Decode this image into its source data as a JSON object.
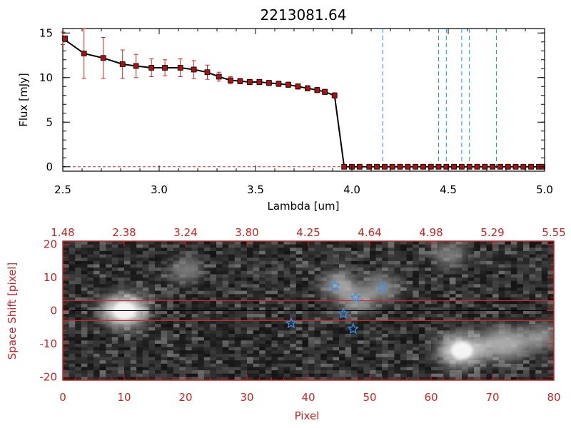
{
  "chart_data": [
    {
      "type": "line",
      "title": "2213081.64",
      "xlabel": "Lambda [um]",
      "ylabel": "Flux [mJy]",
      "xlim": [
        2.5,
        5.0
      ],
      "ylim": [
        -0.5,
        15.5
      ],
      "x_ticks": [
        "2.5",
        "3.0",
        "3.5",
        "4.0",
        "4.5",
        "5.0"
      ],
      "x_tick_values": [
        2.5,
        3.0,
        3.5,
        4.0,
        4.5,
        5.0
      ],
      "y_ticks": [
        "0",
        "5",
        "10",
        "15"
      ],
      "y_tick_values": [
        0,
        5,
        10,
        15
      ],
      "series": [
        {
          "color": "#000000",
          "marker_color": "#aa1111",
          "errorbar_color": "#dd2222",
          "x": [
            2.5,
            2.61,
            2.71,
            2.81,
            2.88,
            2.96,
            3.03,
            3.11,
            3.18,
            3.25,
            3.31,
            3.37,
            3.42,
            3.47,
            3.52,
            3.57,
            3.62,
            3.67,
            3.72,
            3.77,
            3.82,
            3.86,
            3.91,
            3.96,
            4.0,
            4.04,
            4.09,
            4.13,
            4.17,
            4.21,
            4.25,
            4.29,
            4.33,
            4.37,
            4.41,
            4.45,
            4.49,
            4.53,
            4.57,
            4.61,
            4.65,
            4.69,
            4.73,
            4.77,
            4.81,
            4.85,
            4.89,
            4.93,
            4.97,
            5.0
          ],
          "y": [
            14.4,
            12.7,
            12.2,
            11.5,
            11.3,
            11.1,
            11.1,
            11.1,
            10.9,
            10.6,
            10.1,
            9.7,
            9.6,
            9.5,
            9.5,
            9.4,
            9.3,
            9.2,
            9.0,
            8.8,
            8.6,
            8.4,
            8.0,
            0.0,
            0.0,
            0.0,
            0.0,
            0.0,
            0.0,
            0.0,
            0.0,
            0.0,
            0.0,
            0.0,
            0.0,
            0.0,
            0.0,
            0.0,
            0.0,
            0.0,
            0.0,
            0.0,
            0.0,
            0.0,
            0.0,
            0.0,
            0.0,
            0.0,
            0.0,
            0.0
          ],
          "yerr": [
            0.7,
            2.8,
            2.3,
            1.6,
            1.3,
            1.0,
            0.9,
            1.0,
            1.0,
            0.8,
            0.5,
            0.4,
            0.3,
            0.3,
            0.3,
            0.3,
            0.3,
            0.3,
            0.3,
            0.3,
            0.3,
            0.3,
            0.3,
            0,
            0,
            0,
            0,
            0,
            0,
            0,
            0,
            0,
            0,
            0,
            0,
            0,
            0,
            0,
            0,
            0,
            0,
            0,
            0,
            0,
            0,
            0,
            0,
            0,
            0,
            0
          ]
        }
      ],
      "vertical_lines": [
        4.16,
        4.45,
        4.49,
        4.57,
        4.61,
        4.75
      ],
      "vertical_line_color": "#1e90ff",
      "zero_line_color": "#dd2222",
      "grid": false
    },
    {
      "type": "heatmap",
      "xlabel": "Pixel",
      "ylabel": "Space Shift [pixel]",
      "xlim": [
        0,
        80
      ],
      "ylim": [
        -21,
        21
      ],
      "x_ticks": [
        "0",
        "10",
        "20",
        "30",
        "40",
        "50",
        "60",
        "70",
        "80"
      ],
      "x_tick_values": [
        0,
        10,
        20,
        30,
        40,
        50,
        60,
        70,
        80
      ],
      "y_ticks": [
        "20",
        "10",
        "0",
        "-10",
        "-20"
      ],
      "y_tick_values": [
        20,
        10,
        0,
        -10,
        -20
      ],
      "top_ticks": [
        "1.48",
        "2.38",
        "3.24",
        "3.80",
        "4.25",
        "4.64",
        "4.98",
        "5.29",
        "5.55"
      ],
      "top_tick_values": [
        0,
        10,
        20,
        30,
        40,
        50,
        60,
        70,
        80
      ],
      "axis_color": "#cc2222",
      "horizontal_lines": [
        3,
        -3
      ],
      "horizontal_line_color": "#dd2222",
      "center_line": 0,
      "bright_regions": [
        {
          "x": 10,
          "y": 0,
          "intensity": 1.0,
          "size": "large"
        },
        {
          "x": 45,
          "y": 8,
          "intensity": 0.6,
          "size": "medium"
        },
        {
          "x": 48,
          "y": 3,
          "intensity": 0.55,
          "size": "medium"
        },
        {
          "x": 52,
          "y": 7,
          "intensity": 0.45,
          "size": "medium"
        },
        {
          "x": 65,
          "y": -12,
          "intensity": 0.85,
          "size": "large"
        },
        {
          "x": 72,
          "y": -10,
          "intensity": 0.6,
          "size": "large"
        },
        {
          "x": 78,
          "y": -8,
          "intensity": 0.5,
          "size": "medium"
        },
        {
          "x": 20,
          "y": 12,
          "intensity": 0.3,
          "size": "medium"
        },
        {
          "x": 63,
          "y": 17,
          "intensity": 0.35,
          "size": "medium"
        }
      ],
      "star_markers": [
        {
          "x": 37.2,
          "y": -3.8
        },
        {
          "x": 44.3,
          "y": 7.5
        },
        {
          "x": 45.7,
          "y": -0.9
        },
        {
          "x": 47.3,
          "y": -5.5
        },
        {
          "x": 47.7,
          "y": 3.9
        },
        {
          "x": 52.0,
          "y": 7.1
        }
      ],
      "star_color": "#3a8ee6",
      "colormap": "gray"
    }
  ]
}
